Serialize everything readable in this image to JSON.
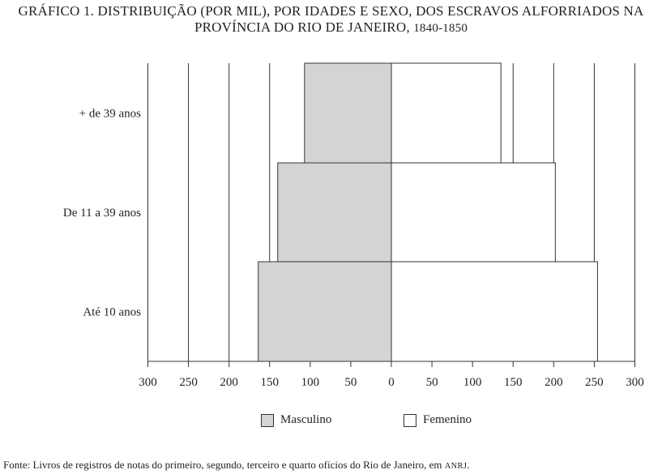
{
  "title_line1": "GRÁFICO 1. DISTRIBUIÇÃO (POR MIL), POR IDADES E SEXO, DOS ESCRAVOS ALFORRIADOS NA",
  "title_line2_main": "PROVÍNCIA DO RIO DE JANEIRO, ",
  "title_line2_years": "1840-1850",
  "source_text": "Fonte: Livros de registros de notas do primeiro, segundo, terceiro e quarto ofícios do Rio de Janeiro, em ",
  "source_abbr": "ANRJ",
  "source_end": ".",
  "chart_data": {
    "type": "bar",
    "orientation": "horizontal-pyramid",
    "categories": [
      "Até 10 anos",
      "De 11 a 39 anos",
      "+ de 39 anos"
    ],
    "series": [
      {
        "name": "Masculino",
        "values": [
          164,
          140,
          107
        ],
        "color": "#d4d4d4"
      },
      {
        "name": "Femenino",
        "values": [
          254,
          202,
          135
        ],
        "color": "#ffffff"
      }
    ],
    "x_ticks": [
      "300",
      "250",
      "200",
      "150",
      "100",
      "50",
      "0",
      "50",
      "100",
      "150",
      "200",
      "250",
      "300"
    ],
    "xlim": [
      -300,
      300
    ],
    "grid": true,
    "legend_position": "bottom"
  }
}
